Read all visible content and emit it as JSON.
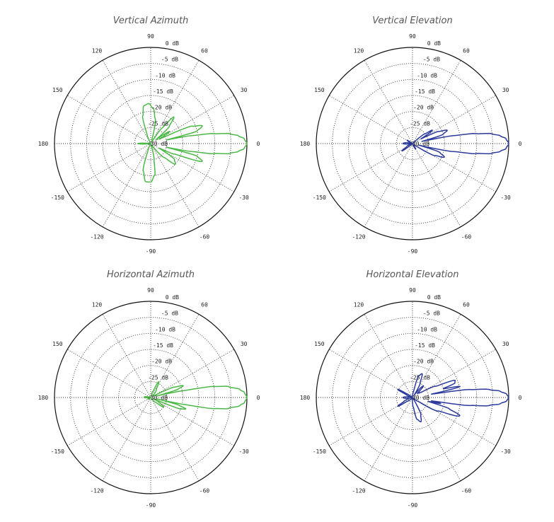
{
  "chart_data": [
    {
      "type": "polar",
      "title": "Vertical Azimuth",
      "color": "#4cb847",
      "rlim": [
        -30,
        0
      ],
      "r_tick_labels": [
        "0 dB",
        "-5 dB",
        "-10 dB",
        "-15 dB",
        "-20 dB",
        "-25 dB",
        "-30 dB"
      ],
      "theta_tick_labels": [
        "0",
        "30",
        "60",
        "90",
        "120",
        "150",
        "180",
        "-150",
        "-120",
        "-90",
        "-60",
        "-30"
      ],
      "series": [
        {
          "name": "Vertical Azimuth",
          "points": [
            [
              -180,
              -26
            ],
            [
              -172,
              -30
            ],
            [
              -120,
              -30
            ],
            [
              -112,
              -28
            ],
            [
              -105,
              -21
            ],
            [
              -97,
              -18
            ],
            [
              -90,
              -18
            ],
            [
              -83,
              -20
            ],
            [
              -78,
              -25
            ],
            [
              -72,
              -30
            ],
            [
              -55,
              -29
            ],
            [
              -46,
              -24
            ],
            [
              -40,
              -20
            ],
            [
              -34,
              -21
            ],
            [
              -28,
              -27
            ],
            [
              -24,
              -22
            ],
            [
              -19,
              -13
            ],
            [
              -15,
              -15
            ],
            [
              -13,
              -25
            ],
            [
              -11,
              -17
            ],
            [
              -9,
              -10
            ],
            [
              -7,
              -5
            ],
            [
              -5,
              -2.5
            ],
            [
              -3,
              -0.8
            ],
            [
              0,
              0
            ],
            [
              3,
              -0.8
            ],
            [
              5,
              -2.5
            ],
            [
              7,
              -5
            ],
            [
              9,
              -10
            ],
            [
              11,
              -17
            ],
            [
              13,
              -25
            ],
            [
              15,
              -15
            ],
            [
              19,
              -13
            ],
            [
              23,
              -16
            ],
            [
              27,
              -27
            ],
            [
              33,
              -23
            ],
            [
              37,
              -28
            ],
            [
              43,
              -22
            ],
            [
              49,
              -19
            ],
            [
              54,
              -24
            ],
            [
              58,
              -29
            ],
            [
              72,
              -29
            ],
            [
              80,
              -22
            ],
            [
              86,
              -19
            ],
            [
              93,
              -17.5
            ],
            [
              100,
              -18
            ],
            [
              106,
              -21
            ],
            [
              112,
              -27
            ],
            [
              118,
              -30
            ],
            [
              172,
              -30
            ],
            [
              180,
              -26
            ]
          ]
        }
      ]
    },
    {
      "type": "polar",
      "title": "Vertical Elevation",
      "color": "#2b3a9c",
      "rlim": [
        -30,
        0
      ],
      "r_tick_labels": [
        "0 dB",
        "-5 dB",
        "-10 dB",
        "-15 dB",
        "-20 dB",
        "-25 dB",
        "-30 dB"
      ],
      "theta_tick_labels": [
        "0",
        "30",
        "60",
        "90",
        "120",
        "150",
        "180",
        "-150",
        "-120",
        "-90",
        "-60",
        "-30"
      ],
      "series": [
        {
          "name": "Vertical Elevation",
          "points": [
            [
              -180,
              -27
            ],
            [
              -170,
              -30
            ],
            [
              -152,
              -28
            ],
            [
              -145,
              -26
            ],
            [
              -138,
              -30
            ],
            [
              -70,
              -30
            ],
            [
              -60,
              -28
            ],
            [
              -50,
              -30
            ],
            [
              -35,
              -29
            ],
            [
              -28,
              -22
            ],
            [
              -23,
              -19.2
            ],
            [
              -18,
              -21
            ],
            [
              -14,
              -28
            ],
            [
              -11,
              -17
            ],
            [
              -9,
              -10
            ],
            [
              -7,
              -5
            ],
            [
              -5,
              -2.5
            ],
            [
              -3,
              -0.8
            ],
            [
              0,
              0
            ],
            [
              3,
              -0.8
            ],
            [
              5,
              -2.5
            ],
            [
              7,
              -5
            ],
            [
              9,
              -10
            ],
            [
              11,
              -17
            ],
            [
              13,
              -27
            ],
            [
              17,
              -20
            ],
            [
              21,
              -18.4
            ],
            [
              25,
              -21
            ],
            [
              29,
              -27
            ],
            [
              34,
              -22.5
            ],
            [
              38,
              -25
            ],
            [
              45,
              -30
            ],
            [
              140,
              -30
            ],
            [
              148,
              -28
            ],
            [
              160,
              -30
            ],
            [
              180,
              -27
            ]
          ]
        }
      ]
    },
    {
      "type": "polar",
      "title": "Horizontal Azimuth",
      "color": "#4cb847",
      "rlim": [
        -30,
        0
      ],
      "r_tick_labels": [
        "0 dB",
        "-5 dB",
        "-10 dB",
        "-15 dB",
        "-20 dB",
        "-25 dB",
        "-30 dB"
      ],
      "theta_tick_labels": [
        "0",
        "30",
        "60",
        "90",
        "120",
        "150",
        "180",
        "-150",
        "-120",
        "-90",
        "-60",
        "-30"
      ],
      "series": [
        {
          "name": "Horizontal Azimuth",
          "points": [
            [
              -180,
              -28
            ],
            [
              -170,
              -30
            ],
            [
              -150,
              -29
            ],
            [
              -130,
              -30
            ],
            [
              -60,
              -30
            ],
            [
              -45,
              -28
            ],
            [
              -36,
              -25
            ],
            [
              -30,
              -27
            ],
            [
              -24,
              -29
            ],
            [
              -21,
              -20
            ],
            [
              -18,
              -18.5
            ],
            [
              -15,
              -21
            ],
            [
              -13,
              -28
            ],
            [
              -12,
              -20
            ],
            [
              -10,
              -10
            ],
            [
              -8,
              -5.5
            ],
            [
              -5,
              -2
            ],
            [
              -3,
              -0.7
            ],
            [
              0,
              0
            ],
            [
              3,
              -0.7
            ],
            [
              5,
              -2
            ],
            [
              8,
              -5.5
            ],
            [
              10,
              -10
            ],
            [
              12,
              -20
            ],
            [
              14,
              -28
            ],
            [
              17,
              -21
            ],
            [
              20,
              -19.2
            ],
            [
              24,
              -22
            ],
            [
              28,
              -29
            ],
            [
              40,
              -29
            ],
            [
              55,
              -27
            ],
            [
              63,
              -24.5
            ],
            [
              70,
              -28
            ],
            [
              80,
              -30
            ],
            [
              160,
              -30
            ],
            [
              175,
              -28
            ],
            [
              180,
              -28
            ]
          ]
        }
      ]
    },
    {
      "type": "polar",
      "title": "Horizontal Elevation",
      "color": "#2b3a9c",
      "rlim": [
        -30,
        0
      ],
      "r_tick_labels": [
        "0 dB",
        "-5 dB",
        "-10 dB",
        "-15 dB",
        "-20 dB",
        "-25 dB",
        "-30 dB"
      ],
      "theta_tick_labels": [
        "0",
        "30",
        "60",
        "90",
        "120",
        "150",
        "180",
        "-150",
        "-120",
        "-90",
        "-60",
        "-30"
      ],
      "series": [
        {
          "name": "Horizontal Elevation",
          "points": [
            [
              -180,
              -27
            ],
            [
              -165,
              -29
            ],
            [
              -155,
              -27
            ],
            [
              -149,
              -24.7
            ],
            [
              -144,
              -28
            ],
            [
              -130,
              -30
            ],
            [
              -95,
              -30
            ],
            [
              -85,
              -27
            ],
            [
              -78,
              -23
            ],
            [
              -71,
              -22
            ],
            [
              -64,
              -24
            ],
            [
              -58,
              -29
            ],
            [
              -45,
              -30
            ],
            [
              -35,
              -28
            ],
            [
              -28,
              -21
            ],
            [
              -21,
              -14.2
            ],
            [
              -17,
              -18
            ],
            [
              -14,
              -25
            ],
            [
              -12,
              -21
            ],
            [
              -10,
              -24
            ],
            [
              -8,
              -12
            ],
            [
              -6,
              -6
            ],
            [
              -4,
              -2.5
            ],
            [
              -2,
              -0.6
            ],
            [
              0,
              0
            ],
            [
              2,
              -0.6
            ],
            [
              4,
              -2.5
            ],
            [
              6,
              -6
            ],
            [
              8,
              -12
            ],
            [
              10,
              -24
            ],
            [
              13,
              -14.8
            ],
            [
              16,
              -20
            ],
            [
              19,
              -16
            ],
            [
              22,
              -15.7
            ],
            [
              26,
              -22
            ],
            [
              32,
              -27
            ],
            [
              40,
              -28
            ],
            [
              47,
              -25
            ],
            [
              55,
              -29
            ],
            [
              62,
              -25
            ],
            [
              68,
              -22
            ],
            [
              74,
              -23
            ],
            [
              80,
              -28
            ],
            [
              90,
              -30
            ],
            [
              140,
              -30
            ],
            [
              146,
              -28
            ],
            [
              151,
              -24.7
            ],
            [
              156,
              -28
            ],
            [
              165,
              -30
            ],
            [
              180,
              -27
            ]
          ]
        }
      ]
    }
  ]
}
